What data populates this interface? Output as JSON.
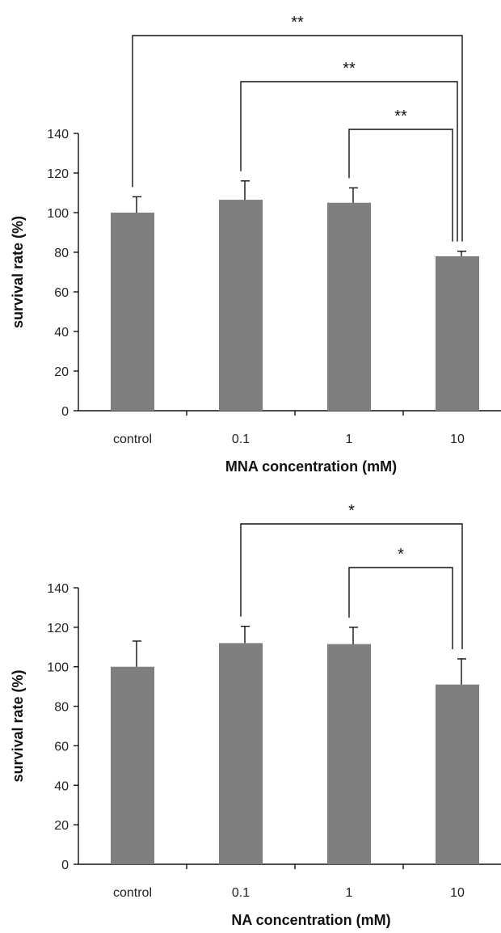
{
  "chart_data": [
    {
      "type": "bar",
      "categories": [
        "control",
        "0.1",
        "1",
        "10"
      ],
      "values": [
        100,
        106.5,
        105,
        78
      ],
      "errors": [
        8,
        9.5,
        7.5,
        2.5
      ],
      "xlabel": "MNA concentration (mM)",
      "ylabel": "survival rate (%)",
      "ylim": [
        0,
        140
      ],
      "yticks": [
        "0",
        "20",
        "40",
        "60",
        "80",
        "100",
        "120",
        "140"
      ],
      "significance": [
        {
          "from": 0,
          "to": 3,
          "label": "**"
        },
        {
          "from": 1,
          "to": 3,
          "label": "**"
        },
        {
          "from": 2,
          "to": 3,
          "label": "**"
        }
      ],
      "bar_color": "#7f7f7f"
    },
    {
      "type": "bar",
      "categories": [
        "control",
        "0.1",
        "1",
        "10"
      ],
      "values": [
        100,
        112,
        111.5,
        91
      ],
      "errors": [
        13,
        8.5,
        8.5,
        13
      ],
      "xlabel": "NA concentration (mM)",
      "ylabel": "survival rate (%)",
      "ylim": [
        0,
        140
      ],
      "yticks": [
        "0",
        "20",
        "40",
        "60",
        "80",
        "100",
        "120",
        "140"
      ],
      "significance": [
        {
          "from": 1,
          "to": 3,
          "label": "*"
        },
        {
          "from": 2,
          "to": 3,
          "label": "*"
        }
      ],
      "bar_color": "#7f7f7f"
    }
  ]
}
